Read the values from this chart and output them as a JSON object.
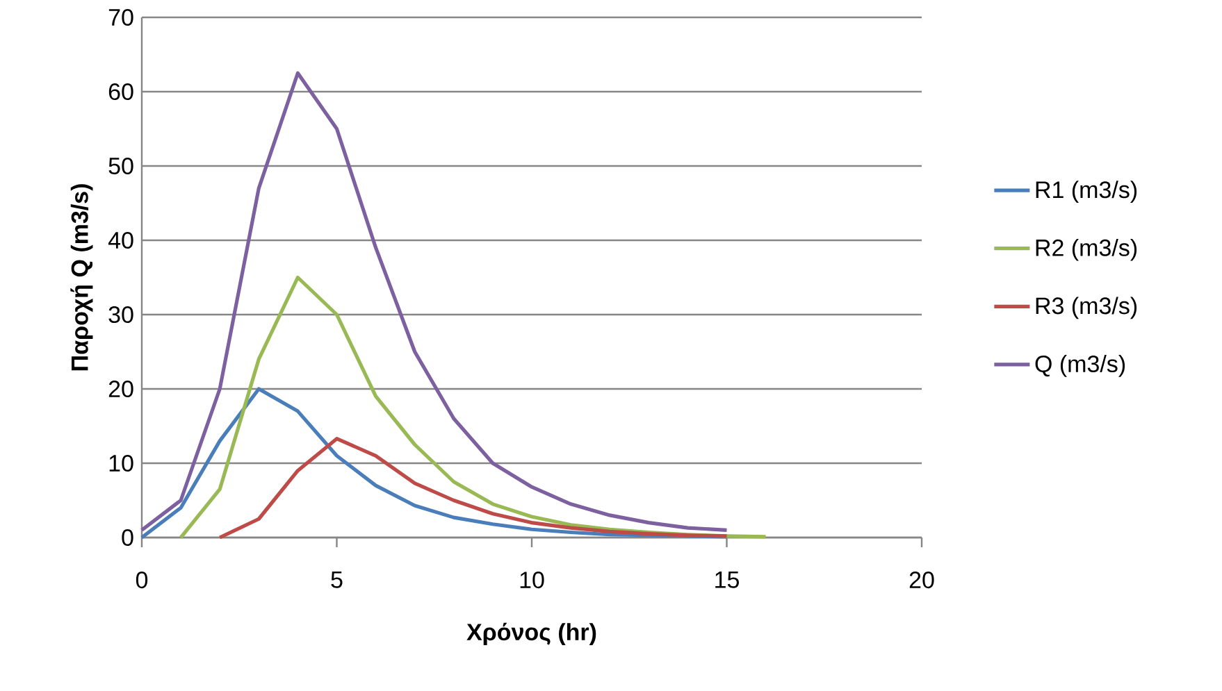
{
  "chart_data": {
    "type": "line",
    "xlabel": "Χρόνος (hr)",
    "ylabel": "Παροχή Q (m3/s)",
    "xlim": [
      0,
      20
    ],
    "ylim": [
      0,
      70
    ],
    "xticks": [
      0,
      5,
      10,
      15,
      20
    ],
    "yticks": [
      0,
      10,
      20,
      30,
      40,
      50,
      60,
      70
    ],
    "grid": "y",
    "legend": "right",
    "marker": "none",
    "line_style": "solid",
    "series": [
      {
        "name": "R1 (m3/s)",
        "color": "#4a7ebb",
        "x": [
          0,
          1,
          2,
          3,
          4,
          5,
          6,
          7,
          8,
          9,
          10,
          11,
          12,
          13,
          14,
          15
        ],
        "values": [
          0,
          4,
          13,
          20,
          17,
          11,
          7,
          4.3,
          2.7,
          1.8,
          1.1,
          0.7,
          0.4,
          0.3,
          0.2,
          0.1
        ]
      },
      {
        "name": "R2 (m3/s)",
        "color": "#98b954",
        "x": [
          1,
          2,
          3,
          4,
          5,
          6,
          7,
          8,
          9,
          10,
          11,
          12,
          13,
          14,
          15,
          16
        ],
        "values": [
          0,
          6.5,
          24,
          35,
          30,
          19,
          12.5,
          7.5,
          4.5,
          2.8,
          1.7,
          1.1,
          0.7,
          0.4,
          0.2,
          0.1
        ]
      },
      {
        "name": "R3 (m3/s)",
        "color": "#be4b48",
        "x": [
          2,
          3,
          4,
          5,
          6,
          7,
          8,
          9,
          10,
          11,
          12,
          13,
          14,
          15
        ],
        "values": [
          0,
          2.5,
          9,
          13.3,
          11,
          7.3,
          5,
          3.2,
          2,
          1.3,
          0.8,
          0.5,
          0.3,
          0.2
        ]
      },
      {
        "name": "Q (m3/s)",
        "color": "#7d60a0",
        "x": [
          0,
          1,
          2,
          3,
          4,
          5,
          6,
          7,
          8,
          9,
          10,
          11,
          12,
          13,
          14,
          15
        ],
        "values": [
          1,
          5,
          20,
          47,
          62.5,
          55,
          39,
          25,
          16,
          10,
          6.8,
          4.5,
          3,
          2,
          1.3,
          1
        ]
      }
    ]
  }
}
